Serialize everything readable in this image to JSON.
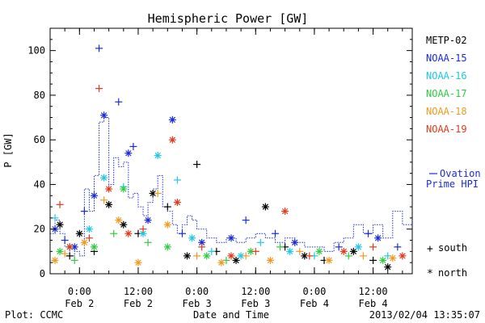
{
  "chart_data": {
    "type": "scatter",
    "title": "Hemispheric Power [GW]",
    "xlabel": "Date and Time",
    "ylabel": "P [GW]",
    "ylim": [
      0,
      110
    ],
    "yticks": [
      0,
      20,
      40,
      60,
      80,
      100
    ],
    "xlim": [
      "2013-02-01T18:00",
      "2013-02-04T20:00"
    ],
    "xticks": [
      {
        "x": "2013-02-02T00:00",
        "time": "0:00",
        "date": "Feb 2"
      },
      {
        "x": "2013-02-02T12:00",
        "time": "12:00",
        "date": "Feb 2"
      },
      {
        "x": "2013-02-03T00:00",
        "time": "0:00",
        "date": "Feb 3"
      },
      {
        "x": "2013-02-03T12:00",
        "time": "12:00",
        "date": "Feb 3"
      },
      {
        "x": "2013-02-04T00:00",
        "time": "0:00",
        "date": "Feb 4"
      },
      {
        "x": "2013-02-04T12:00",
        "time": "12:00",
        "date": "Feb 4"
      }
    ],
    "grid": false,
    "legend_position": "right",
    "series": [
      {
        "name": "METP-02",
        "color": "#000000",
        "points": [
          [
            "2013-02-01T20:00",
            22,
            "north"
          ],
          [
            "2013-02-01T22:00",
            8,
            "south"
          ],
          [
            "2013-02-02T00:00",
            18,
            "north"
          ],
          [
            "2013-02-02T03:00",
            10,
            "south"
          ],
          [
            "2013-02-02T06:00",
            31,
            "north"
          ],
          [
            "2013-02-02T09:00",
            22,
            "north"
          ],
          [
            "2013-02-02T12:00",
            18,
            "south"
          ],
          [
            "2013-02-02T15:00",
            36,
            "north"
          ],
          [
            "2013-02-02T18:00",
            30,
            "south"
          ],
          [
            "2013-02-02T22:00",
            8,
            "north"
          ],
          [
            "2013-02-03T00:00",
            49,
            "south"
          ],
          [
            "2013-02-03T04:00",
            10,
            "south"
          ],
          [
            "2013-02-03T08:00",
            6,
            "north"
          ],
          [
            "2013-02-03T14:00",
            30,
            "north"
          ],
          [
            "2013-02-03T18:00",
            12,
            "south"
          ],
          [
            "2013-02-03T22:00",
            8,
            "north"
          ],
          [
            "2013-02-04T02:00",
            6,
            "south"
          ],
          [
            "2013-02-04T08:00",
            10,
            "north"
          ],
          [
            "2013-02-04T12:00",
            6,
            "south"
          ],
          [
            "2013-02-04T15:00",
            3,
            "north"
          ]
        ]
      },
      {
        "name": "NOAA-15",
        "color": "#1a2bd6",
        "points": [
          [
            "2013-02-01T19:00",
            20,
            "north"
          ],
          [
            "2013-02-01T21:00",
            15,
            "south"
          ],
          [
            "2013-02-01T23:00",
            12,
            "north"
          ],
          [
            "2013-02-02T01:00",
            28,
            "south"
          ],
          [
            "2013-02-02T03:00",
            35,
            "north"
          ],
          [
            "2013-02-02T04:00",
            101,
            "south"
          ],
          [
            "2013-02-02T05:00",
            71,
            "north"
          ],
          [
            "2013-02-02T08:00",
            77,
            "south"
          ],
          [
            "2013-02-02T10:00",
            54,
            "north"
          ],
          [
            "2013-02-02T11:00",
            57,
            "south"
          ],
          [
            "2013-02-02T14:00",
            24,
            "north"
          ],
          [
            "2013-02-02T19:00",
            69,
            "north"
          ],
          [
            "2013-02-02T21:00",
            18,
            "south"
          ],
          [
            "2013-02-03T01:00",
            14,
            "north"
          ],
          [
            "2013-02-03T07:00",
            16,
            "north"
          ],
          [
            "2013-02-03T10:00",
            24,
            "south"
          ],
          [
            "2013-02-03T16:00",
            18,
            "south"
          ],
          [
            "2013-02-03T20:00",
            14,
            "north"
          ],
          [
            "2013-02-04T05:00",
            12,
            "south"
          ],
          [
            "2013-02-04T11:00",
            18,
            "south"
          ],
          [
            "2013-02-04T13:00",
            16,
            "north"
          ],
          [
            "2013-02-04T17:00",
            12,
            "south"
          ]
        ]
      },
      {
        "name": "NOAA-16",
        "color": "#1ec8e6",
        "points": [
          [
            "2013-02-01T19:00",
            25,
            "south"
          ],
          [
            "2013-02-01T22:00",
            12,
            "north"
          ],
          [
            "2013-02-02T02:00",
            20,
            "north"
          ],
          [
            "2013-02-02T05:00",
            43,
            "north"
          ],
          [
            "2013-02-02T09:00",
            39,
            "south"
          ],
          [
            "2013-02-02T13:00",
            18,
            "north"
          ],
          [
            "2013-02-02T16:00",
            53,
            "north"
          ],
          [
            "2013-02-02T20:00",
            42,
            "south"
          ],
          [
            "2013-02-02T23:00",
            16,
            "north"
          ],
          [
            "2013-02-03T03:00",
            10,
            "south"
          ],
          [
            "2013-02-03T09:00",
            8,
            "north"
          ],
          [
            "2013-02-03T13:00",
            14,
            "south"
          ],
          [
            "2013-02-03T19:00",
            10,
            "north"
          ],
          [
            "2013-02-04T00:00",
            8,
            "south"
          ],
          [
            "2013-02-04T09:00",
            12,
            "north"
          ],
          [
            "2013-02-04T15:00",
            8,
            "south"
          ]
        ]
      },
      {
        "name": "NOAA-17",
        "color": "#2ecc40",
        "points": [
          [
            "2013-02-01T20:00",
            10,
            "north"
          ],
          [
            "2013-02-01T23:00",
            6,
            "south"
          ],
          [
            "2013-02-02T03:00",
            12,
            "north"
          ],
          [
            "2013-02-02T07:00",
            18,
            "south"
          ],
          [
            "2013-02-02T09:00",
            38,
            "north"
          ],
          [
            "2013-02-02T14:00",
            14,
            "south"
          ],
          [
            "2013-02-02T18:00",
            12,
            "north"
          ],
          [
            "2013-02-03T02:00",
            8,
            "north"
          ],
          [
            "2013-02-03T06:00",
            6,
            "south"
          ],
          [
            "2013-02-03T11:00",
            10,
            "north"
          ],
          [
            "2013-02-03T17:00",
            12,
            "south"
          ],
          [
            "2013-02-04T01:00",
            10,
            "north"
          ],
          [
            "2013-02-04T07:00",
            8,
            "south"
          ],
          [
            "2013-02-04T14:00",
            6,
            "north"
          ]
        ]
      },
      {
        "name": "NOAA-18",
        "color": "#f09a1f",
        "points": [
          [
            "2013-02-01T19:00",
            6,
            "north"
          ],
          [
            "2013-02-01T21:00",
            9,
            "south"
          ],
          [
            "2013-02-02T01:00",
            14,
            "north"
          ],
          [
            "2013-02-02T05:00",
            33,
            "south"
          ],
          [
            "2013-02-02T08:00",
            24,
            "north"
          ],
          [
            "2013-02-02T12:00",
            5,
            "north"
          ],
          [
            "2013-02-02T16:00",
            36,
            "south"
          ],
          [
            "2013-02-02T18:00",
            22,
            "north"
          ],
          [
            "2013-02-03T00:00",
            8,
            "south"
          ],
          [
            "2013-02-03T05:00",
            5,
            "north"
          ],
          [
            "2013-02-03T10:00",
            8,
            "south"
          ],
          [
            "2013-02-03T15:00",
            6,
            "north"
          ],
          [
            "2013-02-03T21:00",
            10,
            "south"
          ],
          [
            "2013-02-04T03:00",
            6,
            "north"
          ],
          [
            "2013-02-04T10:00",
            8,
            "south"
          ],
          [
            "2013-02-04T16:00",
            7,
            "north"
          ]
        ]
      },
      {
        "name": "NOAA-19",
        "color": "#e03a1e",
        "points": [
          [
            "2013-02-01T20:00",
            31,
            "south"
          ],
          [
            "2013-02-01T22:00",
            12,
            "north"
          ],
          [
            "2013-02-02T02:00",
            16,
            "south"
          ],
          [
            "2013-02-02T04:00",
            83,
            "south"
          ],
          [
            "2013-02-02T06:00",
            38,
            "north"
          ],
          [
            "2013-02-02T10:00",
            18,
            "north"
          ],
          [
            "2013-02-02T13:00",
            20,
            "south"
          ],
          [
            "2013-02-02T19:00",
            60,
            "north"
          ],
          [
            "2013-02-02T20:00",
            32,
            "north"
          ],
          [
            "2013-02-03T01:00",
            12,
            "south"
          ],
          [
            "2013-02-03T07:00",
            8,
            "north"
          ],
          [
            "2013-02-03T12:00",
            10,
            "south"
          ],
          [
            "2013-02-03T18:00",
            28,
            "north"
          ],
          [
            "2013-02-03T23:00",
            8,
            "south"
          ],
          [
            "2013-02-04T06:00",
            10,
            "north"
          ],
          [
            "2013-02-04T12:00",
            12,
            "south"
          ],
          [
            "2013-02-04T18:00",
            8,
            "north"
          ]
        ]
      }
    ],
    "ovation": {
      "label": "Ovation Prime HPI",
      "color": "#1a2bd6",
      "steps": [
        [
          "2013-02-01T18:00",
          18
        ],
        [
          "2013-02-01T19:00",
          24
        ],
        [
          "2013-02-01T20:00",
          18
        ],
        [
          "2013-02-01T21:00",
          12
        ],
        [
          "2013-02-01T22:00",
          8
        ],
        [
          "2013-02-01T23:00",
          10
        ],
        [
          "2013-02-02T00:00",
          8
        ],
        [
          "2013-02-02T01:00",
          38
        ],
        [
          "2013-02-02T02:00",
          28
        ],
        [
          "2013-02-02T03:00",
          44
        ],
        [
          "2013-02-02T04:00",
          68
        ],
        [
          "2013-02-02T05:00",
          70
        ],
        [
          "2013-02-02T06:00",
          40
        ],
        [
          "2013-02-02T07:00",
          52
        ],
        [
          "2013-02-02T08:00",
          48
        ],
        [
          "2013-02-02T09:00",
          50
        ],
        [
          "2013-02-02T10:00",
          34
        ],
        [
          "2013-02-02T11:00",
          36
        ],
        [
          "2013-02-02T12:00",
          30
        ],
        [
          "2013-02-02T13:00",
          26
        ],
        [
          "2013-02-02T14:00",
          32
        ],
        [
          "2013-02-02T15:00",
          38
        ],
        [
          "2013-02-02T16:00",
          44
        ],
        [
          "2013-02-02T17:00",
          30
        ],
        [
          "2013-02-02T18:00",
          28
        ],
        [
          "2013-02-02T19:00",
          22
        ],
        [
          "2013-02-02T20:00",
          18
        ],
        [
          "2013-02-02T21:00",
          22
        ],
        [
          "2013-02-02T22:00",
          26
        ],
        [
          "2013-02-02T23:00",
          24
        ],
        [
          "2013-02-03T00:00",
          20
        ],
        [
          "2013-02-03T02:00",
          16
        ],
        [
          "2013-02-03T04:00",
          14
        ],
        [
          "2013-02-03T06:00",
          16
        ],
        [
          "2013-02-03T08:00",
          14
        ],
        [
          "2013-02-03T10:00",
          16
        ],
        [
          "2013-02-03T12:00",
          18
        ],
        [
          "2013-02-03T14:00",
          16
        ],
        [
          "2013-02-03T16:00",
          14
        ],
        [
          "2013-02-03T18:00",
          16
        ],
        [
          "2013-02-03T20:00",
          14
        ],
        [
          "2013-02-03T22:00",
          12
        ],
        [
          "2013-02-04T00:00",
          12
        ],
        [
          "2013-02-04T02:00",
          10
        ],
        [
          "2013-02-04T04:00",
          14
        ],
        [
          "2013-02-04T06:00",
          16
        ],
        [
          "2013-02-04T08:00",
          22
        ],
        [
          "2013-02-04T10:00",
          18
        ],
        [
          "2013-02-04T12:00",
          22
        ],
        [
          "2013-02-04T14:00",
          16
        ],
        [
          "2013-02-04T16:00",
          28
        ],
        [
          "2013-02-04T18:00",
          22
        ],
        [
          "2013-02-04T20:00",
          22
        ]
      ]
    },
    "marker_legend": [
      {
        "symbol": "+",
        "label": "south"
      },
      {
        "symbol": "*",
        "label": "north"
      }
    ]
  },
  "footer": {
    "plot_label": "Plot: CCMC",
    "timestamp": "2013/02/04 13:35:07"
  }
}
